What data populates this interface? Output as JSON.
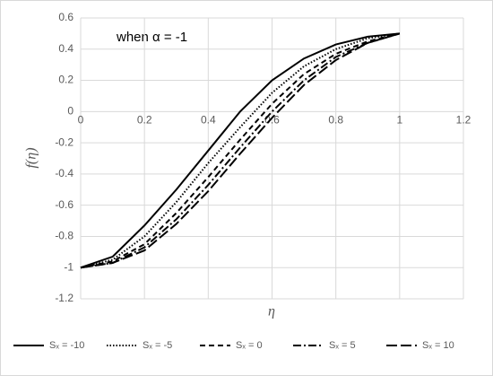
{
  "chart_data": {
    "type": "line",
    "annotation": "when α = -1",
    "xlabel": "η",
    "ylabel": "f(η)",
    "x": [
      0,
      0.1,
      0.2,
      0.3,
      0.4,
      0.5,
      0.6,
      0.7,
      0.8,
      0.9,
      1
    ],
    "series": [
      {
        "name": "Sₓ = -10",
        "color": "#000000",
        "dash": "solid",
        "values": [
          -1,
          -0.93,
          -0.73,
          -0.5,
          -0.25,
          0.0,
          0.2,
          0.34,
          0.43,
          0.48,
          0.5
        ]
      },
      {
        "name": "Sₓ = -5",
        "color": "#000000",
        "dash": "dotted",
        "values": [
          -1,
          -0.95,
          -0.8,
          -0.58,
          -0.33,
          -0.1,
          0.12,
          0.29,
          0.4,
          0.47,
          0.5
        ]
      },
      {
        "name": "Sₓ = 0",
        "color": "#000000",
        "dash": "dashed",
        "values": [
          -1,
          -0.96,
          -0.85,
          -0.65,
          -0.42,
          -0.18,
          0.05,
          0.24,
          0.37,
          0.45,
          0.5
        ]
      },
      {
        "name": "Sₓ = 5",
        "color": "#000000",
        "dash": "dashdot",
        "values": [
          -1,
          -0.97,
          -0.87,
          -0.69,
          -0.47,
          -0.23,
          0.0,
          0.2,
          0.35,
          0.44,
          0.5
        ]
      },
      {
        "name": "Sₓ = 10",
        "color": "#000000",
        "dash": "longdash",
        "values": [
          -1,
          -0.97,
          -0.89,
          -0.72,
          -0.51,
          -0.27,
          -0.04,
          0.17,
          0.33,
          0.44,
          0.5
        ]
      }
    ],
    "xlim": [
      0,
      1.2
    ],
    "xticks": [
      0,
      0.2,
      0.4,
      0.6,
      0.8,
      1,
      1.2
    ],
    "ylim": [
      -1.2,
      0.6
    ],
    "yticks": [
      -1.2,
      -1,
      -0.8,
      -0.6,
      -0.4,
      -0.2,
      0,
      0.2,
      0.4,
      0.6
    ],
    "grid": true,
    "legend": "bottom"
  }
}
